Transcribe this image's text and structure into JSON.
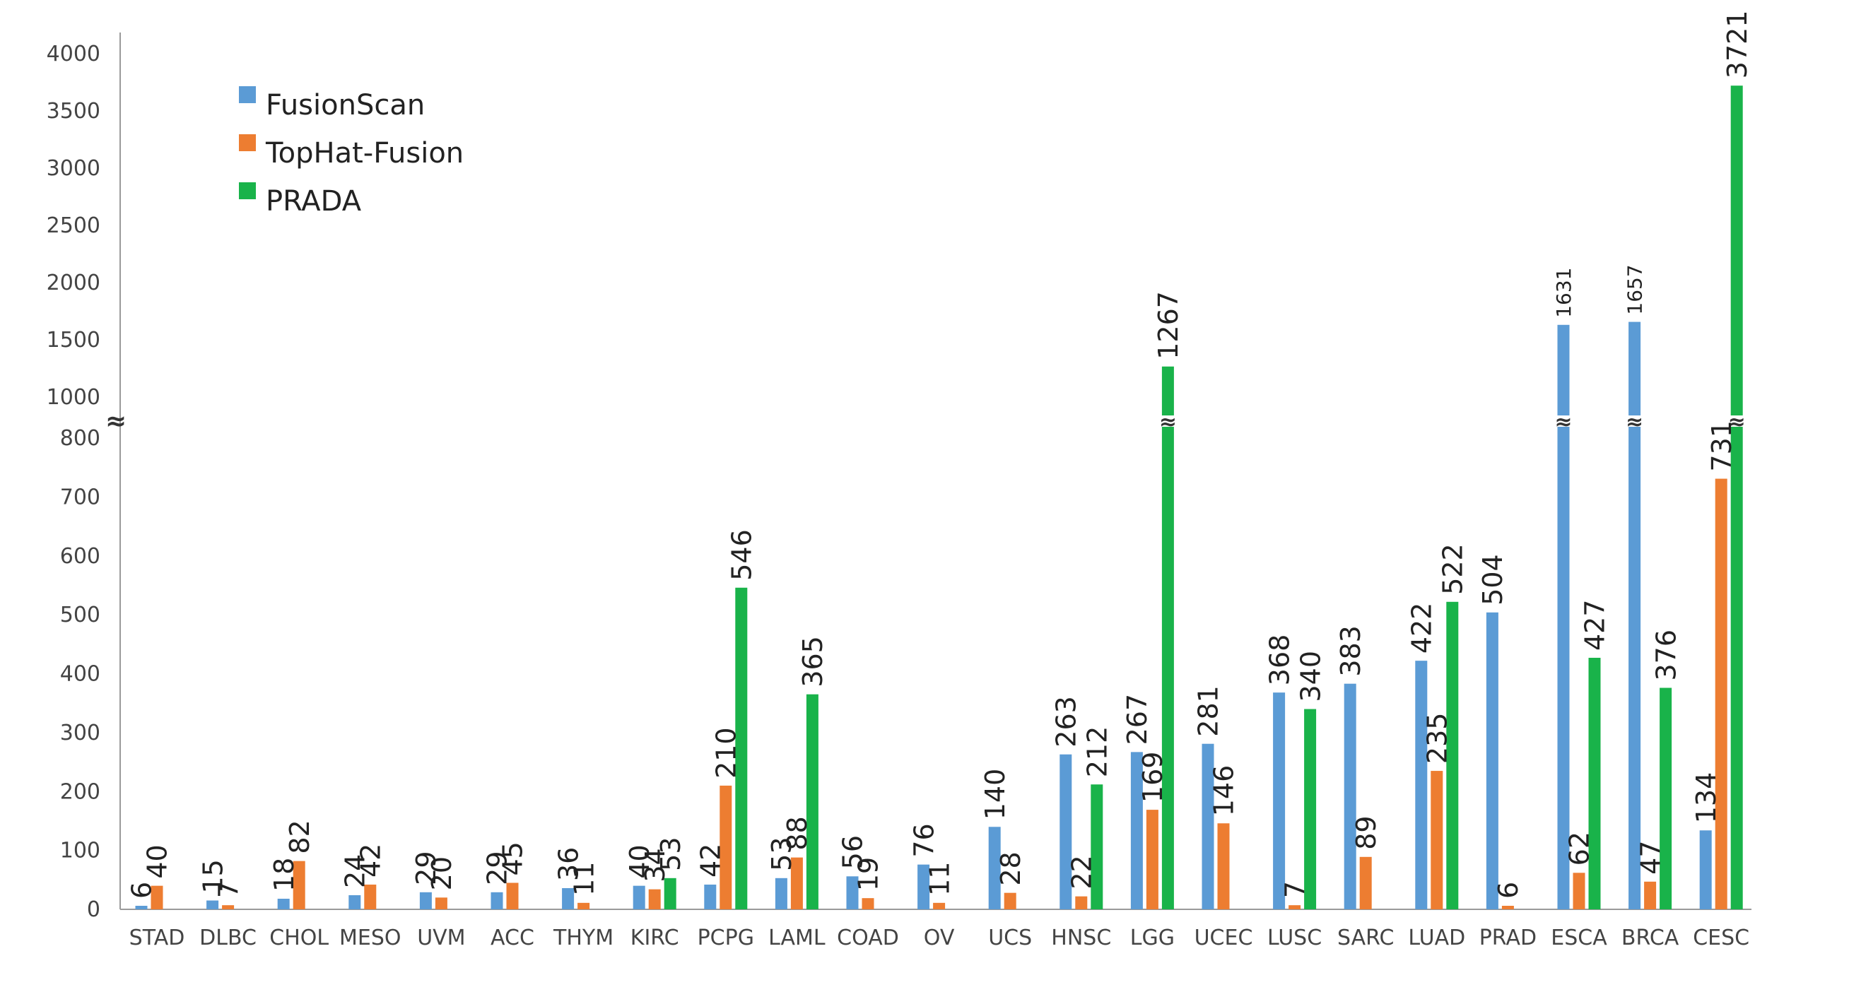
{
  "chart_data": {
    "type": "bar",
    "title": "",
    "xlabel": "",
    "ylabel": "",
    "broken_axis": true,
    "ylim_lower": [
      0,
      800
    ],
    "ylim_upper": [
      1000,
      4000
    ],
    "yticks_lower": [
      "0",
      "100",
      "200",
      "300",
      "400",
      "500",
      "600",
      "700",
      "800"
    ],
    "yticks_upper": [
      "1000",
      "1500",
      "2000",
      "2500",
      "3000",
      "3500",
      "4000"
    ],
    "break_marker": "≈",
    "legend_position": "top-left",
    "grid": false,
    "categories": [
      "STAD",
      "DLBC",
      "CHOL",
      "MESO",
      "UVM",
      "ACC",
      "THYM",
      "KIRC",
      "PCPG",
      "LAML",
      "COAD",
      "OV",
      "UCS",
      "HNSC",
      "LGG",
      "UCEC",
      "LUSC",
      "SARC",
      "LUAD",
      "PRAD",
      "ESCA",
      "BRCA",
      "CESC"
    ],
    "series": [
      {
        "name": "FusionScan",
        "color": "#5b9bd5",
        "values": [
          6,
          15,
          18,
          24,
          29,
          29,
          36,
          40,
          42,
          53,
          56,
          76,
          140,
          263,
          267,
          281,
          368,
          383,
          422,
          504,
          1631,
          1657,
          134
        ],
        "labels": [
          "6",
          "15",
          "18",
          "24",
          "29",
          "29",
          "36",
          "40",
          "42",
          "53",
          "56",
          "76",
          "140",
          "263",
          "267",
          "281",
          "368",
          "383",
          "422",
          "504",
          "1631",
          "1657",
          "134"
        ]
      },
      {
        "name": "TopHat-Fusion",
        "color": "#ed7d31",
        "values": [
          40,
          7,
          82,
          42,
          20,
          45,
          11,
          34,
          210,
          88,
          19,
          11,
          28,
          22,
          169,
          146,
          7,
          89,
          235,
          6,
          62,
          47,
          731
        ],
        "labels": [
          "40",
          "7",
          "82",
          "42",
          "20",
          "45",
          "11",
          "34",
          "210",
          "88",
          "19",
          "11",
          "28",
          "22",
          "169",
          "146",
          "7",
          "89",
          "235",
          "6",
          "62",
          "47",
          "731"
        ]
      },
      {
        "name": "PRADA",
        "color": "#19b34a",
        "values": [
          null,
          null,
          null,
          null,
          null,
          null,
          null,
          53,
          546,
          365,
          null,
          null,
          null,
          212,
          1267,
          null,
          340,
          null,
          522,
          null,
          427,
          376,
          3721
        ],
        "labels": [
          null,
          null,
          null,
          null,
          null,
          null,
          null,
          "53",
          "546",
          "365",
          null,
          null,
          null,
          "212",
          "1267",
          null,
          "340",
          null,
          "522",
          null,
          "427",
          "376",
          "3721"
        ]
      }
    ]
  }
}
